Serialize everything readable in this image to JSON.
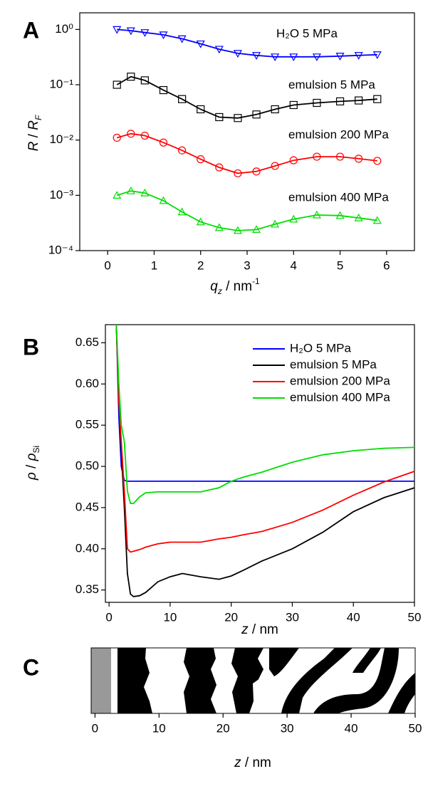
{
  "chart_data": [
    {
      "type": "scatter-line",
      "panel_label": "A",
      "log_y": true,
      "x_label": [
        "q",
        "z",
        " / nm",
        "-1"
      ],
      "y_label": [
        "R",
        " / ",
        "R",
        "F"
      ],
      "xlim": [
        -0.6,
        6.6
      ],
      "xticks": [
        0,
        1,
        2,
        3,
        4,
        5,
        6
      ],
      "ylim": [
        0.0001,
        2
      ],
      "yticks": [
        {
          "value": 1,
          "label": "10⁰"
        },
        {
          "value": 0.1,
          "label": "10⁻¹"
        },
        {
          "value": 0.01,
          "label": "10⁻²"
        },
        {
          "value": 0.001,
          "label": "10⁻³"
        },
        {
          "value": 0.0001,
          "label": "10⁻⁴"
        }
      ],
      "x": [
        0.2,
        0.5,
        0.8,
        1.2,
        1.6,
        2.0,
        2.4,
        2.8,
        3.2,
        3.6,
        4.0,
        4.5,
        5.0,
        5.4,
        5.8
      ],
      "series": [
        {
          "name": "H₂O 5 MPa",
          "color": "#0000ff",
          "marker": "triangle-down",
          "values": [
            1.0,
            0.95,
            0.88,
            0.8,
            0.68,
            0.55,
            0.44,
            0.37,
            0.34,
            0.32,
            0.32,
            0.32,
            0.33,
            0.34,
            0.35
          ]
        },
        {
          "name": "emulsion 5 MPa",
          "color": "#000000",
          "marker": "square",
          "values": [
            0.1,
            0.14,
            0.12,
            0.08,
            0.055,
            0.036,
            0.026,
            0.025,
            0.029,
            0.036,
            0.043,
            0.047,
            0.05,
            0.052,
            0.055
          ]
        },
        {
          "name": "emulsion 200 MPa",
          "color": "#ff0000",
          "marker": "circle",
          "values": [
            0.011,
            0.013,
            0.012,
            0.009,
            0.0065,
            0.0045,
            0.0032,
            0.0025,
            0.0027,
            0.0034,
            0.0043,
            0.005,
            0.005,
            0.0046,
            0.0042
          ]
        },
        {
          "name": "emulsion 400 MPa",
          "color": "#00dd00",
          "marker": "triangle-up",
          "values": [
            0.001,
            0.0012,
            0.0011,
            0.0008,
            0.0005,
            0.00033,
            0.00026,
            0.00023,
            0.00024,
            0.0003,
            0.00037,
            0.00044,
            0.00043,
            0.00039,
            0.00035
          ]
        }
      ]
    },
    {
      "type": "line",
      "panel_label": "B",
      "x_label": [
        "z",
        " / nm"
      ],
      "y_label": [
        "ρ",
        " / ",
        "ρ",
        "Si"
      ],
      "xlim": [
        -0.6,
        50
      ],
      "xticks": [
        0,
        10,
        20,
        30,
        40,
        50
      ],
      "ylim": [
        0.335,
        0.672
      ],
      "yticks": [
        0.35,
        {
          "value": 0.4,
          "label": "0.40"
        },
        0.45,
        {
          "value": 0.5,
          "label": "0.50"
        },
        0.55,
        {
          "value": 0.6,
          "label": "0.60"
        },
        0.65
      ],
      "x": [
        1.2,
        1.6,
        2,
        2.5,
        3,
        3.5,
        4,
        5,
        6,
        8,
        10,
        12,
        15,
        18,
        20,
        22,
        25,
        30,
        35,
        40,
        45,
        50
      ],
      "series": [
        {
          "name": "H₂O 5 MPa",
          "color": "#0000ff",
          "values": [
            0.672,
            0.56,
            0.5,
            0.483,
            0.482,
            0.482,
            0.482,
            0.482,
            0.482,
            0.482,
            0.482,
            0.482,
            0.482,
            0.482,
            0.482,
            0.482,
            0.482,
            0.482,
            0.482,
            0.482,
            0.482,
            0.482
          ]
        },
        {
          "name": "emulsion 5 MPa",
          "color": "#000000",
          "values": [
            0.672,
            0.58,
            0.52,
            0.45,
            0.37,
            0.345,
            0.342,
            0.343,
            0.347,
            0.36,
            0.366,
            0.37,
            0.366,
            0.363,
            0.367,
            0.374,
            0.385,
            0.4,
            0.42,
            0.445,
            0.462,
            0.474
          ]
        },
        {
          "name": "emulsion 200 MPa",
          "color": "#ff0000",
          "values": [
            0.672,
            0.58,
            0.53,
            0.47,
            0.4,
            0.396,
            0.397,
            0.399,
            0.402,
            0.406,
            0.408,
            0.408,
            0.408,
            0.412,
            0.414,
            0.417,
            0.421,
            0.432,
            0.447,
            0.465,
            0.481,
            0.494
          ]
        },
        {
          "name": "emulsion 400 MPa",
          "color": "#00dd00",
          "values": [
            0.672,
            0.6,
            0.55,
            0.53,
            0.47,
            0.455,
            0.455,
            0.463,
            0.468,
            0.469,
            0.469,
            0.469,
            0.469,
            0.474,
            0.482,
            0.487,
            0.493,
            0.505,
            0.514,
            0.519,
            0.522,
            0.523
          ]
        }
      ]
    },
    {
      "type": "image",
      "panel_label": "C",
      "x_label": [
        "z",
        " / nm"
      ],
      "xlim": [
        -0.6,
        50
      ],
      "xticks": [
        0,
        10,
        20,
        30,
        40,
        50
      ]
    }
  ]
}
